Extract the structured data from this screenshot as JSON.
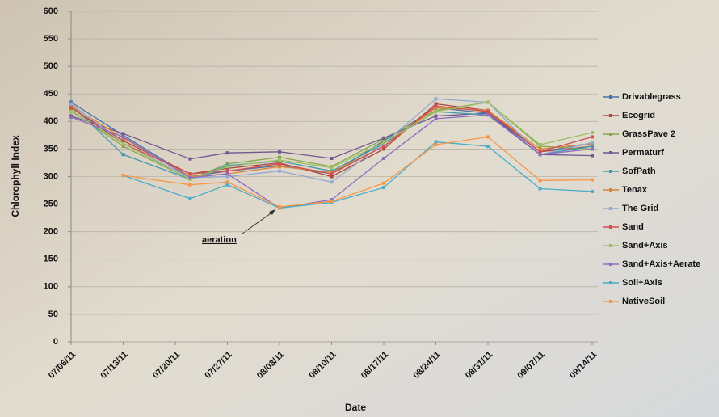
{
  "chart_data": {
    "type": "line",
    "x_label": "Date",
    "y_label": "Chlorophyll Index",
    "annotation": "aeration",
    "x": [
      "07/06/11",
      "07/13/11",
      "07/22/11",
      "07/27/11",
      "08/03/11",
      "08/10/11",
      "08/17/11",
      "08/24/11",
      "08/31/11",
      "09/07/11",
      "09/14/11"
    ],
    "xlim": [
      "07/06/11",
      "09/14/11"
    ],
    "xticks": [
      "07/06/11",
      "07/13/11",
      "07/20/11",
      "07/27/11",
      "08/03/11",
      "08/10/11",
      "08/17/11",
      "08/24/11",
      "08/31/11",
      "09/07/11",
      "09/14/11"
    ],
    "ylim": [
      0,
      600
    ],
    "yticks": [
      0,
      50,
      100,
      150,
      200,
      250,
      300,
      350,
      400,
      450,
      500,
      550,
      600
    ],
    "grid": true,
    "legend": "right",
    "series": [
      {
        "name": "Drivablegrass",
        "color": "#4572A7",
        "values": [
          435,
          375,
          300,
          310,
          320,
          305,
          365,
          425,
          415,
          345,
          360
        ]
      },
      {
        "name": "Ecogrid",
        "color": "#AA4643",
        "values": [
          425,
          365,
          305,
          315,
          325,
          300,
          350,
          432,
          420,
          345,
          355
        ]
      },
      {
        "name": "GrassPave 2",
        "color": "#89A54E",
        "values": [
          420,
          355,
          295,
          323,
          335,
          318,
          368,
          420,
          435,
          355,
          350
        ]
      },
      {
        "name": "Permaturf",
        "color": "#71588F",
        "values": [
          410,
          378,
          332,
          343,
          345,
          333,
          370,
          410,
          415,
          340,
          338
        ]
      },
      {
        "name": "SofPath",
        "color": "#4198AF",
        "values": [
          430,
          340,
          295,
          320,
          328,
          310,
          360,
          418,
          412,
          340,
          355
        ]
      },
      {
        "name": "Tenax",
        "color": "#DB843D",
        "values": [
          428,
          370,
          300,
          305,
          318,
          308,
          355,
          425,
          420,
          350,
          360
        ]
      },
      {
        "name": "The Grid",
        "color": "#93A9CF",
        "values": [
          432,
          360,
          298,
          300,
          310,
          290,
          360,
          441,
          435,
          340,
          362
        ]
      },
      {
        "name": "Sand",
        "color": "#D05050",
        "values": [
          425,
          360,
          305,
          310,
          323,
          305,
          355,
          428,
          418,
          345,
          372
        ]
      },
      {
        "name": "Sand+Axis",
        "color": "#9BC060",
        "values": [
          418,
          360,
          295,
          318,
          330,
          316,
          362,
          418,
          435,
          358,
          380
        ]
      },
      {
        "name": "Sand+Axis+Aerate",
        "color": "#8E6CC0",
        "values": [
          408,
          372,
          298,
          305,
          243,
          258,
          333,
          405,
          412,
          340,
          350
        ]
      },
      {
        "name": "Soil+Axis",
        "color": "#4BACC6",
        "values": [
          null,
          302,
          260,
          285,
          243,
          253,
          280,
          363,
          355,
          278,
          273
        ]
      },
      {
        "name": "NativeSoil",
        "color": "#F79646",
        "values": [
          null,
          302,
          285,
          290,
          245,
          255,
          288,
          358,
          372,
          293,
          294
        ]
      }
    ]
  }
}
